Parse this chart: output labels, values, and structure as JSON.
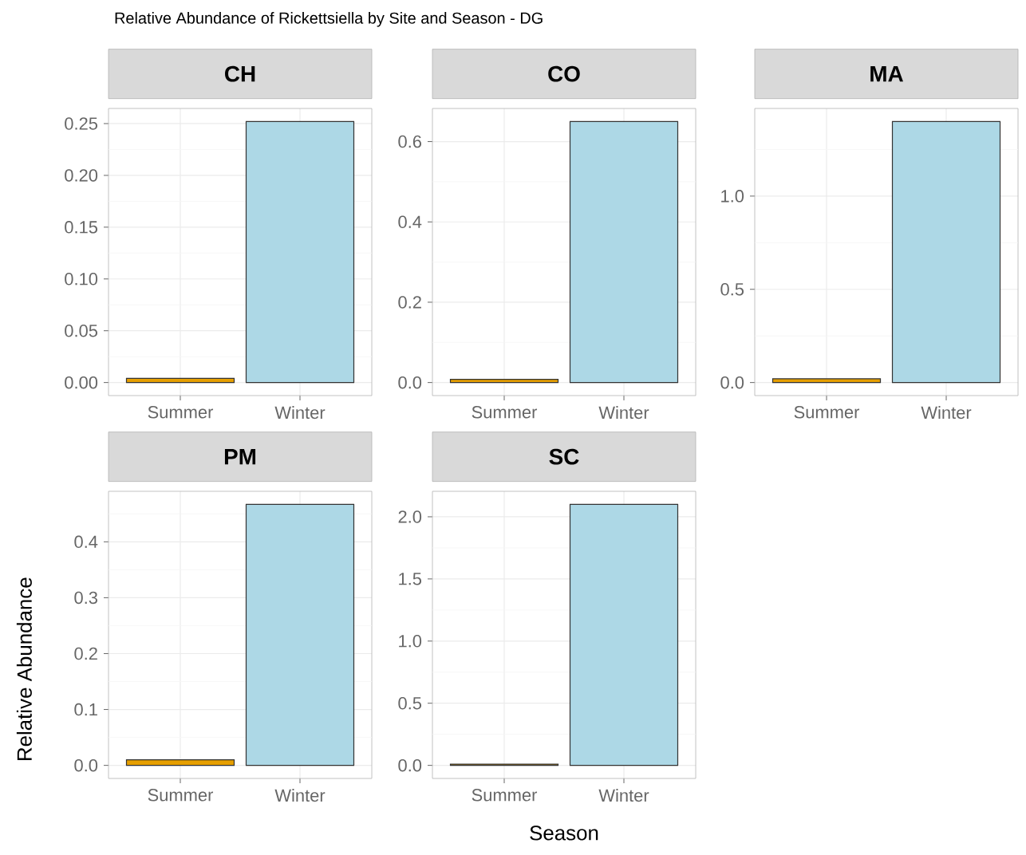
{
  "chart_data": [
    {
      "type": "bar",
      "title": "CH",
      "annotations": [
        "Relative Abundance of Rickettsiella by Site and Season - DG"
      ],
      "categories": [
        "Summer",
        "Winter"
      ],
      "values": [
        0.004,
        0.252
      ],
      "colors": [
        "#e69f00",
        "#add8e6"
      ],
      "ylim": [
        -0.0126,
        0.2646
      ],
      "yticks": [
        {
          "value": 0,
          "label": "0.00"
        },
        {
          "value": 0.025,
          "label": null
        },
        {
          "value": 0.05,
          "label": "0.05"
        },
        {
          "value": 0.075,
          "label": null
        },
        {
          "value": 0.1,
          "label": "0.10"
        },
        {
          "value": 0.125,
          "label": null
        },
        {
          "value": 0.15,
          "label": "0.15"
        },
        {
          "value": 0.175,
          "label": null
        },
        {
          "value": 0.2,
          "label": "0.20"
        },
        {
          "value": 0.225,
          "label": null
        },
        {
          "value": 0.25,
          "label": "0.25"
        }
      ],
      "grid": true
    },
    {
      "type": "bar",
      "title": "CO",
      "categories": [
        "Summer",
        "Winter"
      ],
      "values": [
        0.008,
        0.65
      ],
      "colors": [
        "#e69f00",
        "#add8e6"
      ],
      "ylim": [
        -0.0325,
        0.6825
      ],
      "yticks": [
        {
          "value": 0,
          "label": "0.0"
        },
        {
          "value": 0.1,
          "label": null
        },
        {
          "value": 0.2,
          "label": "0.2"
        },
        {
          "value": 0.3,
          "label": null
        },
        {
          "value": 0.4,
          "label": "0.4"
        },
        {
          "value": 0.5,
          "label": null
        },
        {
          "value": 0.6,
          "label": "0.6"
        }
      ],
      "grid": true
    },
    {
      "type": "bar",
      "title": "MA",
      "categories": [
        "Summer",
        "Winter"
      ],
      "values": [
        0.02,
        1.4
      ],
      "colors": [
        "#e69f00",
        "#add8e6"
      ],
      "ylim": [
        -0.07,
        1.47
      ],
      "yticks": [
        {
          "value": 0,
          "label": "0.0"
        },
        {
          "value": 0.25,
          "label": null
        },
        {
          "value": 0.5,
          "label": "0.5"
        },
        {
          "value": 0.75,
          "label": null
        },
        {
          "value": 1,
          "label": "1.0"
        },
        {
          "value": 1.25,
          "label": null
        }
      ],
      "grid": true
    },
    {
      "type": "bar",
      "title": "PM",
      "ylabel": "Relative Abundance",
      "categories": [
        "Summer",
        "Winter"
      ],
      "values": [
        0.01,
        0.467
      ],
      "colors": [
        "#e69f00",
        "#add8e6"
      ],
      "ylim": [
        -0.02335,
        0.49035
      ],
      "yticks": [
        {
          "value": 0,
          "label": "0.0"
        },
        {
          "value": 0.05,
          "label": null
        },
        {
          "value": 0.1,
          "label": "0.1"
        },
        {
          "value": 0.15,
          "label": null
        },
        {
          "value": 0.2,
          "label": "0.2"
        },
        {
          "value": 0.25,
          "label": null
        },
        {
          "value": 0.3,
          "label": "0.3"
        },
        {
          "value": 0.35,
          "label": null
        },
        {
          "value": 0.4,
          "label": "0.4"
        },
        {
          "value": 0.45,
          "label": null
        }
      ],
      "grid": true
    },
    {
      "type": "bar",
      "title": "SC",
      "xlabel": "Season",
      "categories": [
        "Summer",
        "Winter"
      ],
      "values": [
        0.01,
        2.1
      ],
      "colors": [
        "#e69f00",
        "#add8e6"
      ],
      "ylim": [
        -0.105,
        2.205
      ],
      "yticks": [
        {
          "value": 0,
          "label": "0.0"
        },
        {
          "value": 0.25,
          "label": null
        },
        {
          "value": 0.5,
          "label": "0.5"
        },
        {
          "value": 0.75,
          "label": null
        },
        {
          "value": 1,
          "label": "1.0"
        },
        {
          "value": 1.25,
          "label": null
        },
        {
          "value": 1.5,
          "label": "1.5"
        },
        {
          "value": 1.75,
          "label": null
        },
        {
          "value": 2,
          "label": "2.0"
        }
      ],
      "grid": true
    }
  ]
}
